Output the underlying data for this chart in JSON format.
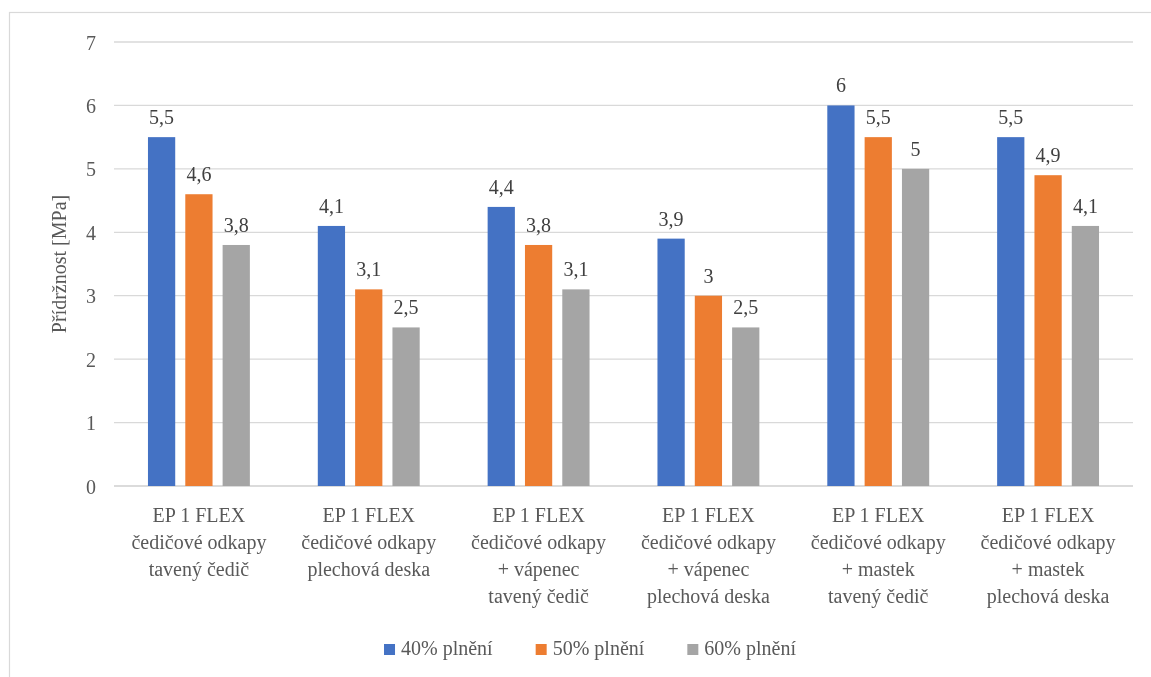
{
  "chart_data": {
    "type": "bar",
    "ylabel": "Přídržnost [MPa]",
    "categories": [
      "EP 1 FLEX\nčedičové odkapy\ntavený čedič",
      "EP 1 FLEX\nčedičové odkapy\nplechová deska",
      "EP 1 FLEX\nčedičové odkapy\n+ vápenec\ntavený čedič",
      "EP 1 FLEX\nčedičové odkapy\n+ vápenec\nplechová deska",
      "EP 1 FLEX\nčedičové odkapy\n+ mastek\ntavený čedič",
      "EP 1 FLEX\nčedičové odkapy\n+ mastek\nplechová deska"
    ],
    "series": [
      {
        "name": "40% plnění",
        "color": "#4472c4",
        "values": [
          5.5,
          4.1,
          4.4,
          3.9,
          6,
          5.5
        ],
        "value_labels": [
          "5,5",
          "4,1",
          "4,4",
          "3,9",
          "6",
          "5,5"
        ]
      },
      {
        "name": "50% plnění",
        "color": "#ed7d31",
        "values": [
          4.6,
          3.1,
          3.8,
          3,
          5.5,
          4.9
        ],
        "value_labels": [
          "4,6",
          "3,1",
          "3,8",
          "3",
          "5,5",
          "4,9"
        ]
      },
      {
        "name": "60% plnění",
        "color": "#a5a5a5",
        "values": [
          3.8,
          2.5,
          3.1,
          2.5,
          5,
          4.1
        ],
        "value_labels": [
          "3,8",
          "2,5",
          "3,1",
          "2,5",
          "5",
          "4,1"
        ]
      }
    ],
    "ylim": [
      0,
      7
    ],
    "yticks": [
      0,
      1,
      2,
      3,
      4,
      5,
      6,
      7
    ],
    "grid": "y",
    "legend": "bottom"
  }
}
